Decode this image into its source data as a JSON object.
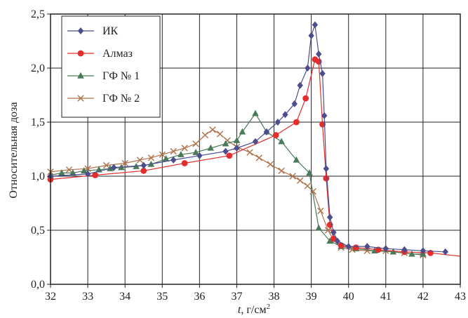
{
  "chart_data": {
    "type": "line",
    "xlabel_var": "t",
    "xlabel_unit": ", г/см",
    "xlabel_sup": "2",
    "ylabel": "Относительная доза",
    "xlim": [
      32,
      43
    ],
    "ylim": [
      0,
      2.5
    ],
    "x_ticks": [
      "32",
      "33",
      "34",
      "35",
      "36",
      "37",
      "38",
      "39",
      "40",
      "41",
      "42",
      "43"
    ],
    "y_ticks": [
      "0,0",
      "0,5",
      "1,0",
      "1,5",
      "2,0",
      "2,5"
    ],
    "grid": true,
    "legend_position": "top-left",
    "series": [
      {
        "name": "ИК",
        "color": "#4b4d8c",
        "marker": "diamond",
        "points": [
          [
            32.0,
            1.0
          ],
          [
            33.0,
            1.02
          ],
          [
            33.7,
            1.08
          ],
          [
            34.5,
            1.1
          ],
          [
            35.3,
            1.15
          ],
          [
            36.0,
            1.19
          ],
          [
            36.7,
            1.23
          ],
          [
            37.0,
            1.26
          ],
          [
            37.5,
            1.32
          ],
          [
            37.8,
            1.41
          ],
          [
            38.1,
            1.5
          ],
          [
            38.3,
            1.57
          ],
          [
            38.55,
            1.67
          ],
          [
            38.7,
            1.84
          ],
          [
            38.9,
            2.0
          ],
          [
            39.0,
            2.3
          ],
          [
            39.1,
            2.4
          ],
          [
            39.2,
            2.13
          ],
          [
            39.3,
            1.95
          ],
          [
            39.35,
            1.56
          ],
          [
            39.4,
            1.07
          ],
          [
            39.5,
            0.62
          ],
          [
            39.6,
            0.48
          ],
          [
            39.7,
            0.4
          ],
          [
            40.0,
            0.35
          ],
          [
            40.5,
            0.35
          ],
          [
            41.0,
            0.33
          ],
          [
            41.5,
            0.32
          ],
          [
            42.0,
            0.31
          ],
          [
            42.6,
            0.3
          ]
        ]
      },
      {
        "name": "Алмаз",
        "color": "#e42d2d",
        "marker": "circle",
        "points": [
          [
            32.0,
            0.97
          ],
          [
            33.2,
            1.01
          ],
          [
            34.5,
            1.05
          ],
          [
            35.6,
            1.12
          ],
          [
            36.8,
            1.19
          ],
          [
            38.05,
            1.38
          ],
          [
            38.6,
            1.5
          ],
          [
            38.85,
            1.72
          ],
          [
            39.1,
            2.08
          ],
          [
            39.2,
            2.06
          ],
          [
            39.3,
            1.48
          ],
          [
            39.4,
            0.98
          ],
          [
            39.5,
            0.55
          ],
          [
            39.6,
            0.42
          ],
          [
            39.8,
            0.36
          ],
          [
            40.2,
            0.34
          ],
          [
            40.8,
            0.32
          ],
          [
            41.5,
            0.3
          ],
          [
            42.2,
            0.29
          ],
          [
            43.0,
            0.26
          ]
        ]
      },
      {
        "name": "ГФ № 1",
        "color": "#4a7a58",
        "marker": "triangle",
        "points": [
          [
            32.0,
            1.01
          ],
          [
            32.3,
            1.03
          ],
          [
            32.6,
            1.03
          ],
          [
            32.9,
            1.05
          ],
          [
            33.3,
            1.06
          ],
          [
            33.6,
            1.07
          ],
          [
            33.9,
            1.08
          ],
          [
            34.3,
            1.09
          ],
          [
            34.7,
            1.11
          ],
          [
            35.1,
            1.16
          ],
          [
            35.5,
            1.2
          ],
          [
            35.9,
            1.22
          ],
          [
            36.3,
            1.26
          ],
          [
            36.7,
            1.3
          ],
          [
            37.0,
            1.33
          ],
          [
            37.15,
            1.41
          ],
          [
            37.5,
            1.58
          ],
          [
            37.8,
            1.41
          ],
          [
            38.2,
            1.32
          ],
          [
            38.6,
            1.15
          ],
          [
            38.95,
            1.03
          ],
          [
            39.2,
            0.52
          ],
          [
            39.5,
            0.4
          ],
          [
            39.8,
            0.35
          ],
          [
            40.2,
            0.33
          ],
          [
            40.7,
            0.31
          ],
          [
            41.2,
            0.3
          ],
          [
            41.7,
            0.28
          ],
          [
            42.0,
            0.28
          ]
        ]
      },
      {
        "name": "ГФ № 2",
        "color": "#b0714a",
        "marker": "cross",
        "points": [
          [
            32.0,
            1.04
          ],
          [
            32.5,
            1.06
          ],
          [
            33.0,
            1.07
          ],
          [
            33.5,
            1.1
          ],
          [
            34.0,
            1.12
          ],
          [
            34.4,
            1.15
          ],
          [
            34.7,
            1.17
          ],
          [
            35.0,
            1.2
          ],
          [
            35.3,
            1.23
          ],
          [
            35.6,
            1.26
          ],
          [
            35.9,
            1.3
          ],
          [
            36.15,
            1.38
          ],
          [
            36.35,
            1.43
          ],
          [
            36.55,
            1.39
          ],
          [
            36.75,
            1.33
          ],
          [
            37.0,
            1.27
          ],
          [
            37.35,
            1.22
          ],
          [
            37.6,
            1.17
          ],
          [
            37.9,
            1.11
          ],
          [
            38.2,
            1.05
          ],
          [
            38.5,
            1.0
          ],
          [
            38.7,
            0.96
          ],
          [
            38.9,
            0.91
          ],
          [
            39.05,
            0.86
          ],
          [
            39.25,
            0.68
          ],
          [
            39.45,
            0.5
          ],
          [
            39.6,
            0.41
          ],
          [
            39.8,
            0.34
          ],
          [
            40.1,
            0.32
          ],
          [
            40.5,
            0.31
          ],
          [
            41.0,
            0.31
          ],
          [
            41.5,
            0.29
          ],
          [
            42.0,
            0.27
          ]
        ]
      }
    ]
  }
}
